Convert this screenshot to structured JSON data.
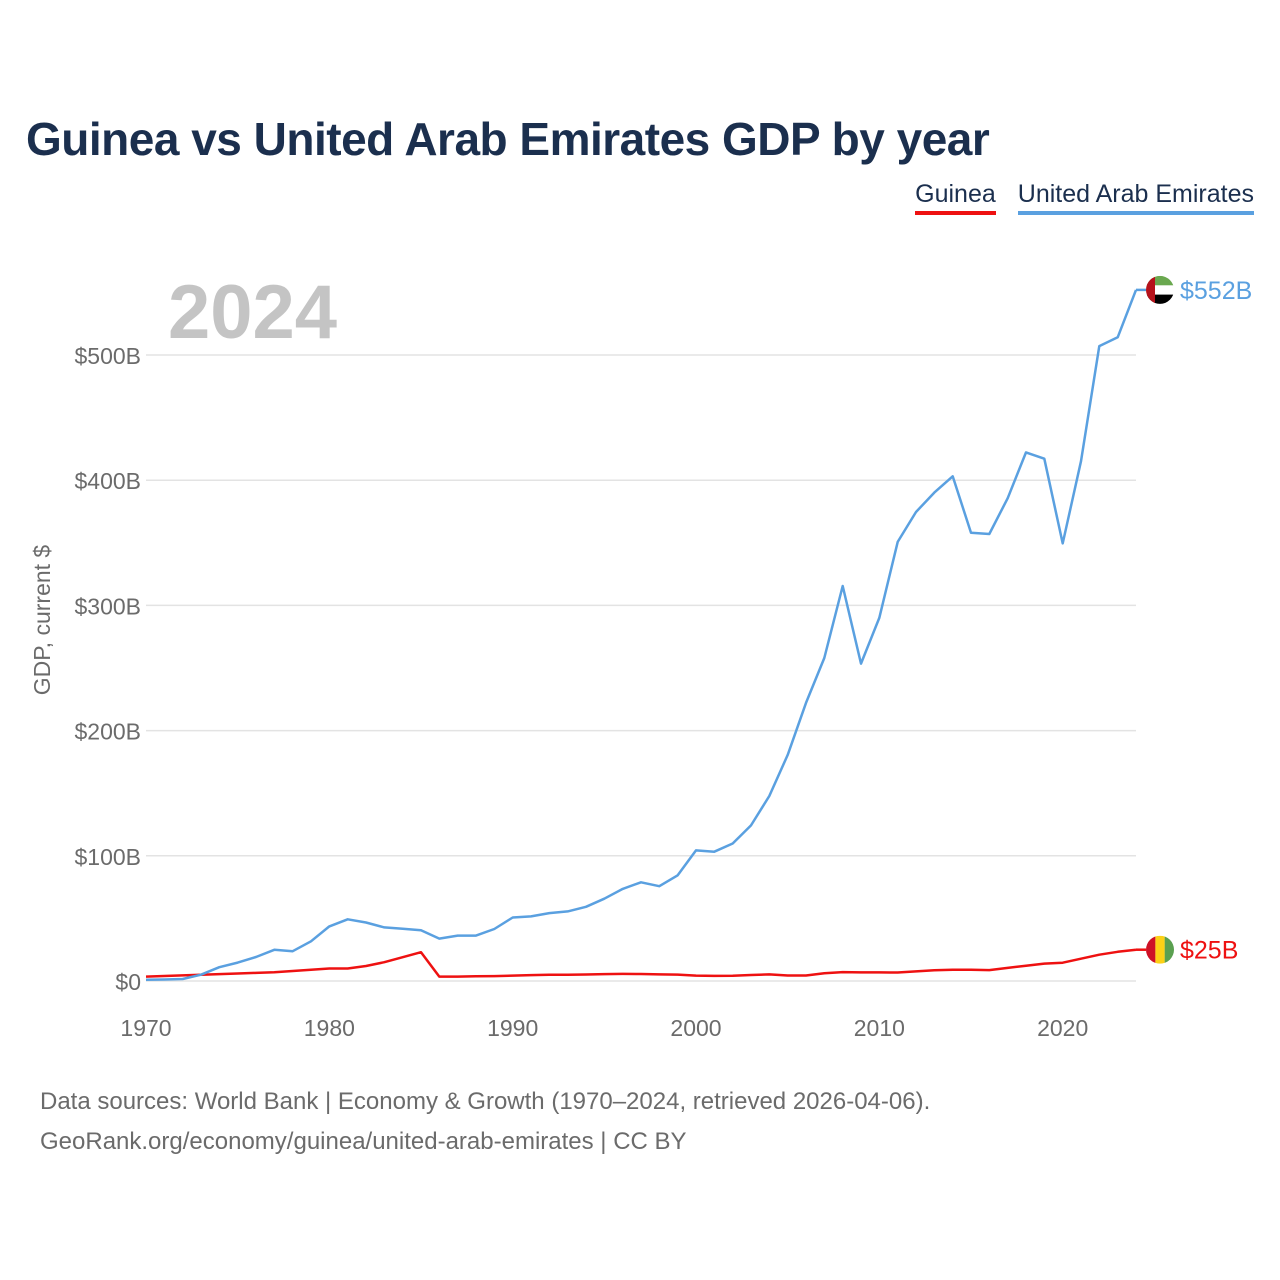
{
  "title": "Guinea vs United Arab Emirates GDP by year",
  "legend": [
    {
      "label": "Guinea",
      "color": "#ee1111"
    },
    {
      "label": "United Arab Emirates",
      "color": "#5aa0e0"
    }
  ],
  "source": {
    "line1": "Data sources: World Bank | Economy & Growth (1970–2024, retrieved 2026-04-06).",
    "line2": "GeoRank.org/economy/guinea/united-arab-emirates | CC BY"
  },
  "chart_data": {
    "type": "line",
    "title": "Guinea vs United Arab Emirates GDP by year",
    "year_label": "2024",
    "xlabel": "",
    "ylabel": "GDP, current $",
    "xlim": [
      1970,
      2024
    ],
    "ylim": [
      0,
      560
    ],
    "x_ticks": [
      1970,
      1980,
      1990,
      2000,
      2010,
      2020
    ],
    "y_ticks": [
      {
        "value": 0,
        "label": "$0"
      },
      {
        "value": 100,
        "label": "$100B"
      },
      {
        "value": 200,
        "label": "$200B"
      },
      {
        "value": 300,
        "label": "$300B"
      },
      {
        "value": 400,
        "label": "$400B"
      },
      {
        "value": 500,
        "label": "$500B"
      }
    ],
    "x": [
      1970,
      1971,
      1972,
      1973,
      1974,
      1975,
      1976,
      1977,
      1978,
      1979,
      1980,
      1981,
      1982,
      1983,
      1984,
      1985,
      1986,
      1987,
      1988,
      1989,
      1990,
      1991,
      1992,
      1993,
      1994,
      1995,
      1996,
      1997,
      1998,
      1999,
      2000,
      2001,
      2002,
      2003,
      2004,
      2005,
      2006,
      2007,
      2008,
      2009,
      2010,
      2011,
      2012,
      2013,
      2014,
      2015,
      2016,
      2017,
      2018,
      2019,
      2020,
      2021,
      2022,
      2023,
      2024
    ],
    "series": [
      {
        "name": "Guinea",
        "color": "#ee1111",
        "end_label": "$25B",
        "flag": "guinea-flag",
        "values": [
          3.5,
          4.0,
          4.5,
          5.0,
          5.5,
          6.0,
          6.5,
          7.0,
          8.0,
          9.0,
          10.0,
          10.0,
          12.0,
          15.0,
          19.0,
          23.0,
          3.5,
          3.5,
          3.8,
          3.9,
          4.3,
          4.7,
          5.0,
          5.0,
          5.2,
          5.5,
          5.7,
          5.6,
          5.3,
          5.1,
          4.3,
          4.1,
          4.2,
          4.8,
          5.3,
          4.4,
          4.4,
          6.2,
          7.1,
          6.9,
          6.9,
          6.8,
          7.7,
          8.6,
          9.0,
          9.0,
          8.7,
          10.5,
          12.2,
          13.9,
          14.6,
          17.8,
          21.0,
          23.3,
          25.0
        ]
      },
      {
        "name": "United Arab Emirates",
        "color": "#5aa0e0",
        "end_label": "$552B",
        "flag": "uae-flag",
        "values": [
          1.0,
          1.2,
          1.6,
          5.0,
          11.0,
          14.7,
          19.2,
          24.9,
          23.8,
          31.7,
          43.6,
          49.3,
          46.7,
          42.8,
          41.8,
          40.6,
          33.9,
          36.3,
          36.3,
          41.5,
          50.7,
          51.6,
          54.2,
          55.6,
          59.3,
          65.7,
          73.6,
          78.8,
          75.7,
          84.4,
          104.3,
          103.3,
          109.8,
          124.3,
          147.8,
          180.6,
          222.1,
          258.0,
          315.5,
          253.5,
          290.0,
          350.7,
          374.6,
          390.1,
          403.1,
          358.1,
          357.0,
          385.6,
          422.2,
          417.2,
          349.5,
          415.2,
          507.1,
          514.1,
          552.0
        ]
      }
    ]
  }
}
